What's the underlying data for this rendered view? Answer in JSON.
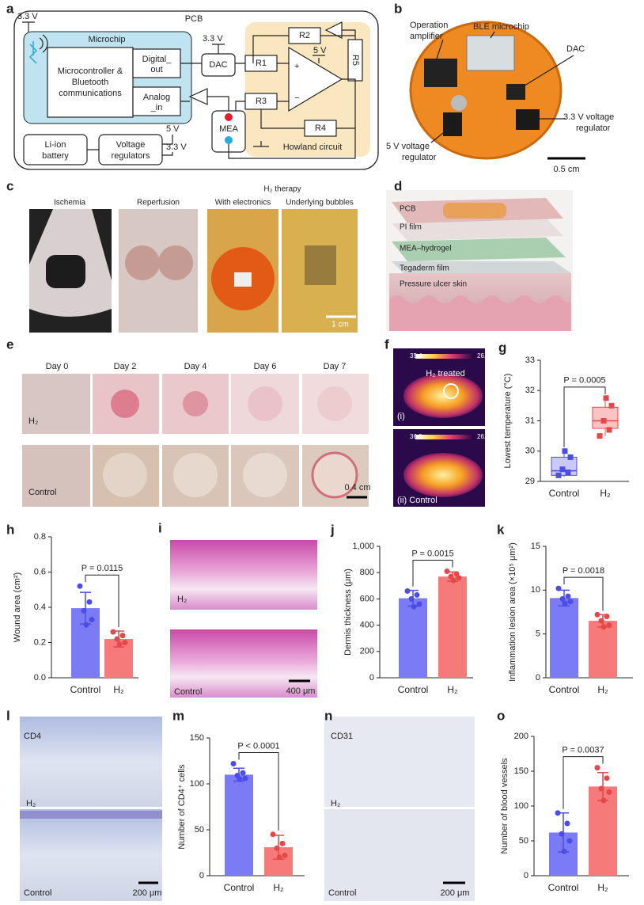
{
  "figure": {
    "panel_labels": [
      "a",
      "b",
      "c",
      "d",
      "e",
      "f",
      "g",
      "h",
      "i",
      "j",
      "k",
      "l",
      "m",
      "n",
      "o"
    ],
    "circuit": {
      "pcb": "PCB",
      "vcc": "3.3 V",
      "microchip": "Microchip",
      "controller": [
        "Microcontroller &",
        "Bluetooth",
        "communications"
      ],
      "digital_out": [
        "Digital_",
        "out"
      ],
      "analog_in": [
        "Analog",
        "_in"
      ],
      "dac": "DAC",
      "dac_vcc": "3.3 V",
      "resistors": [
        "R1",
        "R2",
        "R3",
        "R4",
        "R5"
      ],
      "opamp_vcc": "5 V",
      "plus": "+",
      "minus": "−",
      "mea": "MEA",
      "howland": "Howland circuit",
      "battery": [
        "Li-ion",
        "battery"
      ],
      "regulators": [
        "Voltage",
        "regulators"
      ],
      "out_5v": "5 V",
      "out_33v": "3.3 V"
    },
    "device": {
      "opamp": [
        "Operation",
        "amplifier"
      ],
      "ble": "BLE microchip",
      "dac": "DAC",
      "reg33": [
        "3.3 V voltage",
        "regulator"
      ],
      "reg5": [
        "5 V voltage",
        "regulator"
      ],
      "scale": "0.5 cm"
    },
    "surgery": {
      "ischemia": "Ischemia",
      "reperfusion": "Reperfusion",
      "therapy": "H₂ therapy",
      "electronics": "With electronics",
      "bubbles": "Underlying bubbles",
      "scale": "1 cm"
    },
    "layers": [
      "PCB",
      "PI film",
      "MEA–hydrogel",
      "Tegaderm film",
      "Pressure ulcer skin"
    ],
    "wounds": {
      "days": [
        "Day 0",
        "Day 2",
        "Day 4",
        "Day 6",
        "Day 7"
      ],
      "groups": [
        "H₂",
        "Control"
      ],
      "scale": "0.4 cm"
    },
    "thermal": {
      "top": {
        "max": "35.4",
        "min": "26.5",
        "label": "H₂ treated",
        "index": "(i)"
      },
      "bottom": {
        "max": "36.3",
        "min": "26.1",
        "label": "(ii) Control"
      }
    },
    "he_stain": {
      "groups": [
        "H₂",
        "Control"
      ],
      "scale": "400 μm"
    },
    "cd4": {
      "marker": "CD4",
      "groups": [
        "H₂",
        "Control"
      ],
      "scale": "200 μm"
    },
    "cd31": {
      "marker": "CD31",
      "groups": [
        "H₂",
        "Control"
      ],
      "scale": "200 μm"
    }
  },
  "chart_data": [
    {
      "type": "box",
      "ylabel": "Lowest temperature (°C)",
      "categories": [
        "Control",
        "H₂"
      ],
      "stats": [
        {
          "min": 29.15,
          "q1": 29.2,
          "median": 29.35,
          "q3": 29.8,
          "max": 30.0
        },
        {
          "min": 30.5,
          "q1": 30.75,
          "median": 31.0,
          "q3": 31.45,
          "max": 31.75
        }
      ],
      "points": [
        [
          29.2,
          29.3,
          29.4,
          29.8,
          30.0
        ],
        [
          30.5,
          30.7,
          31.0,
          31.5,
          31.75
        ]
      ],
      "colors": [
        "#c9c9fb",
        "#fbc3c3"
      ],
      "point_colors": [
        "#4c4ce6",
        "#e54848"
      ],
      "ylim": [
        29,
        33
      ],
      "yticks": [
        29,
        30,
        31,
        32,
        33
      ],
      "annotation": "P = 0.0005"
    },
    {
      "type": "bar",
      "ylabel": "Wound area (cm²)",
      "categories": [
        "Control",
        "H₂"
      ],
      "values": [
        0.395,
        0.22
      ],
      "errors": [
        0.09,
        0.045
      ],
      "points": [
        [
          0.52,
          0.43,
          0.38,
          0.33,
          0.3
        ],
        [
          0.26,
          0.24,
          0.22,
          0.2,
          0.19
        ]
      ],
      "colors": [
        "#7b7bf6",
        "#f77a7a"
      ],
      "point_colors": [
        "#4c4ce6",
        "#e54848"
      ],
      "ylim": [
        0,
        0.8
      ],
      "yticks": [
        {
          "value": 0,
          "label": "0.0"
        },
        0.2,
        0.4,
        0.6,
        0.8
      ],
      "annotation": "P = 0.0115"
    },
    {
      "type": "bar",
      "ylabel": "Dermis thickness (μm)",
      "categories": [
        "Control",
        "H₂"
      ],
      "values": [
        605,
        770
      ],
      "errors": [
        60,
        35
      ],
      "points": [
        [
          660,
          630,
          600,
          560,
          540
        ],
        [
          810,
          790,
          770,
          760,
          740
        ]
      ],
      "colors": [
        "#7b7bf6",
        "#f77a7a"
      ],
      "point_colors": [
        "#4c4ce6",
        "#e54848"
      ],
      "ylim": [
        0,
        1000
      ],
      "yticks": [
        0,
        200,
        400,
        600,
        800,
        {
          "value": 1000,
          "label": "1,000"
        }
      ],
      "annotation": "P = 0.0015"
    },
    {
      "type": "bar",
      "ylabel": "Inflammation lesion area (×10⁵ μm²)",
      "categories": [
        "Control",
        "H₂"
      ],
      "values": [
        9.1,
        6.5
      ],
      "errors": [
        0.9,
        0.7
      ],
      "points": [
        [
          10.2,
          9.3,
          9.0,
          8.7,
          8.5
        ],
        [
          7.2,
          7.0,
          6.5,
          6.0,
          5.8
        ]
      ],
      "colors": [
        "#7b7bf6",
        "#f77a7a"
      ],
      "point_colors": [
        "#4c4ce6",
        "#e54848"
      ],
      "ylim": [
        0,
        15
      ],
      "yticks": [
        0,
        5,
        10,
        15
      ],
      "annotation": "P = 0.0018"
    },
    {
      "type": "bar",
      "ylabel": "Number of CD4⁺ cells",
      "categories": [
        "Control",
        "H₂"
      ],
      "values": [
        110,
        31
      ],
      "errors": [
        7,
        13
      ],
      "points": [
        [
          122,
          112,
          109,
          106,
          105
        ],
        [
          45,
          35,
          30,
          22,
          20
        ]
      ],
      "colors": [
        "#7b7bf6",
        "#f77a7a"
      ],
      "point_colors": [
        "#4c4ce6",
        "#e54848"
      ],
      "ylim": [
        0,
        150
      ],
      "yticks": [
        0,
        50,
        100,
        150
      ],
      "annotation": "P < 0.0001"
    },
    {
      "type": "bar",
      "ylabel": "Number of blood vessels",
      "categories": [
        "Control",
        "H₂"
      ],
      "values": [
        62,
        128
      ],
      "errors": [
        28,
        20
      ],
      "points": [
        [
          90,
          75,
          60,
          50,
          35
        ],
        [
          155,
          140,
          125,
          120,
          108
        ]
      ],
      "colors": [
        "#7b7bf6",
        "#f77a7a"
      ],
      "point_colors": [
        "#4c4ce6",
        "#e54848"
      ],
      "ylim": [
        0,
        200
      ],
      "yticks": [
        0,
        50,
        100,
        150,
        200
      ],
      "annotation": "P = 0.0037"
    }
  ]
}
